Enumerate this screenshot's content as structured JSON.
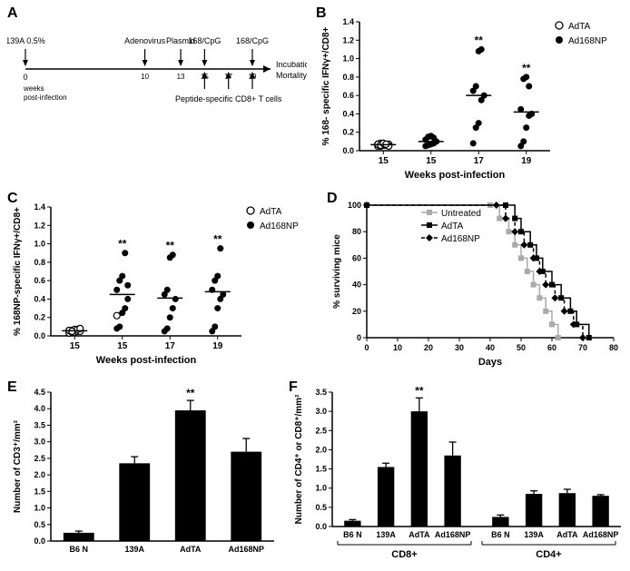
{
  "panelA": {
    "label": "A",
    "timeline": {
      "top_events": [
        {
          "label": "139A 0.5%",
          "week": 0
        },
        {
          "label": "Adenovirus",
          "week": 10
        },
        {
          "label": "Plasmid",
          "week": 13
        },
        {
          "label": "168/CpG",
          "week": 15
        },
        {
          "label": "168/CpG",
          "week": 19
        }
      ],
      "bottom_events": [
        {
          "label": "Peptide-specific CD8+ T cells",
          "weeks": [
            15,
            17,
            19
          ]
        }
      ],
      "start_label": "0",
      "start_sublabel_1": "weeks",
      "start_sublabel_2": "post-infection",
      "end_label_1": "Incubation",
      "end_label_2": "Mortality",
      "week_ticks": [
        0,
        10,
        13,
        15,
        17,
        19
      ]
    }
  },
  "panelB": {
    "label": "B",
    "ylabel": "% 168- specific IFNγ+/CD8+",
    "xlabel": "Weeks post-infection",
    "ylim": [
      0,
      1.4
    ],
    "yticks": [
      0,
      0.2,
      0.4,
      0.6,
      0.8,
      1.0,
      1.2,
      1.4
    ],
    "xticks": [
      "15",
      "15",
      "17",
      "19"
    ],
    "legend": [
      {
        "label": "AdTA",
        "marker": "open-circle"
      },
      {
        "label": "Ad168NP",
        "marker": "filled-circle"
      }
    ],
    "groups": [
      {
        "x": 0,
        "marker": "open-circle",
        "points": [
          0.05,
          0.05,
          0.06,
          0.06,
          0.07,
          0.07,
          0.08,
          0.08,
          0.06,
          0.05,
          0.07,
          0.06,
          0.08,
          0.07
        ],
        "mean": 0.065,
        "sig": ""
      },
      {
        "x": 1,
        "marker": "filled-circle",
        "points": [
          0.05,
          0.06,
          0.07,
          0.08,
          0.1,
          0.12,
          0.15,
          0.16,
          0.14
        ],
        "mean": 0.1,
        "sig": ""
      },
      {
        "x": 2,
        "marker": "filled-circle",
        "points": [
          0.08,
          0.25,
          0.3,
          0.55,
          0.6,
          0.65,
          0.7,
          1.08,
          1.1
        ],
        "mean": 0.6,
        "sig": "**"
      },
      {
        "x": 3,
        "marker": "filled-circle",
        "points": [
          0.05,
          0.1,
          0.25,
          0.38,
          0.4,
          0.45,
          0.78,
          0.8,
          0.7
        ],
        "mean": 0.42,
        "sig": "**"
      }
    ]
  },
  "panelC": {
    "label": "C",
    "ylabel": "% 168NP-specific IFNγ+/CD8+",
    "xlabel": "Weeks post-infection",
    "ylim": [
      0,
      1.4
    ],
    "yticks": [
      0,
      0.2,
      0.4,
      0.6,
      0.8,
      1.0,
      1.2,
      1.4
    ],
    "xticks": [
      "15",
      "15",
      "17",
      "19"
    ],
    "legend": [
      {
        "label": "AdTA",
        "marker": "open-circle"
      },
      {
        "label": "Ad168NP",
        "marker": "filled-circle"
      }
    ],
    "groups": [
      {
        "x": 0,
        "marker": "open-circle",
        "points": [
          0.03,
          0.04,
          0.04,
          0.05,
          0.05,
          0.06,
          0.06,
          0.07,
          0.07,
          0.08,
          0.06,
          0.05
        ],
        "mean": 0.055,
        "sig": ""
      },
      {
        "x": 1,
        "marker": "filled-circle",
        "points": [
          0.08,
          0.1,
          0.25,
          0.3,
          0.4,
          0.5,
          0.6,
          0.65,
          0.9,
          0.55
        ],
        "mean": 0.45,
        "sig": "**",
        "outlier_open": 0.22
      },
      {
        "x": 2,
        "marker": "filled-circle",
        "points": [
          0.05,
          0.08,
          0.2,
          0.3,
          0.4,
          0.45,
          0.5,
          0.85,
          0.88
        ],
        "mean": 0.41,
        "sig": "**"
      },
      {
        "x": 3,
        "marker": "filled-circle",
        "points": [
          0.05,
          0.1,
          0.3,
          0.4,
          0.45,
          0.5,
          0.6,
          0.65,
          0.95
        ],
        "mean": 0.48,
        "sig": "**"
      }
    ]
  },
  "panelD": {
    "label": "D",
    "ylabel": "% surviving mice",
    "xlabel": "Days",
    "ylim": [
      0,
      100
    ],
    "yticks": [
      0,
      20,
      40,
      60,
      80,
      100
    ],
    "xlim": [
      0,
      80
    ],
    "xticks": [
      0,
      10,
      20,
      30,
      40,
      50,
      60,
      70,
      80
    ],
    "legend": [
      {
        "label": "Untreated",
        "marker": "gray-square",
        "color": "#aaaaaa",
        "dash": "none"
      },
      {
        "label": "AdTA",
        "marker": "black-square",
        "color": "#000000",
        "dash": "none"
      },
      {
        "label": "Ad168NP",
        "marker": "black-diamond",
        "color": "#000000",
        "dash": "4,3"
      }
    ],
    "series": [
      {
        "name": "Untreated",
        "color": "#aaaaaa",
        "dash": "none",
        "marker": "square",
        "pts": [
          [
            0,
            100
          ],
          [
            40,
            100
          ],
          [
            43,
            90
          ],
          [
            46,
            80
          ],
          [
            48,
            70
          ],
          [
            50,
            60
          ],
          [
            52,
            50
          ],
          [
            54,
            40
          ],
          [
            56,
            30
          ],
          [
            58,
            20
          ],
          [
            60,
            10
          ],
          [
            62,
            0
          ]
        ]
      },
      {
        "name": "AdTA",
        "color": "#000000",
        "dash": "none",
        "marker": "square",
        "pts": [
          [
            0,
            100
          ],
          [
            45,
            100
          ],
          [
            48,
            90
          ],
          [
            50,
            80
          ],
          [
            53,
            70
          ],
          [
            55,
            60
          ],
          [
            57,
            50
          ],
          [
            60,
            40
          ],
          [
            63,
            30
          ],
          [
            66,
            20
          ],
          [
            68,
            10
          ],
          [
            72,
            0
          ]
        ]
      },
      {
        "name": "Ad168NP",
        "color": "#000000",
        "dash": "4,3",
        "marker": "diamond",
        "pts": [
          [
            0,
            100
          ],
          [
            42,
            100
          ],
          [
            45,
            90
          ],
          [
            48,
            80
          ],
          [
            51,
            70
          ],
          [
            54,
            60
          ],
          [
            56,
            50
          ],
          [
            58,
            40
          ],
          [
            61,
            30
          ],
          [
            64,
            20
          ],
          [
            67,
            10
          ],
          [
            70,
            0
          ]
        ]
      }
    ]
  },
  "panelE": {
    "label": "E",
    "ylabel": "Number of CD3⁺/mm²",
    "yticks": [
      0,
      0.5,
      1.0,
      1.5,
      2.0,
      2.5,
      3.0,
      3.5,
      4.0,
      4.5
    ],
    "ylim": [
      0,
      4.5
    ],
    "bars": [
      {
        "label": "B6 N",
        "value": 0.25,
        "err": 0.05,
        "sig": ""
      },
      {
        "label": "139A",
        "value": 2.35,
        "err": 0.2,
        "sig": ""
      },
      {
        "label": "AdTA",
        "value": 3.95,
        "err": 0.3,
        "sig": "**"
      },
      {
        "label": "Ad168NP",
        "value": 2.7,
        "err": 0.4,
        "sig": ""
      }
    ],
    "bar_color": "#000000",
    "bar_width": 0.55
  },
  "panelF": {
    "label": "F",
    "ylabel": "Number of CD4⁺ or CD8⁺/mm²",
    "yticks": [
      0,
      0.5,
      1.0,
      1.5,
      2.0,
      2.5,
      3.0,
      3.5
    ],
    "ylim": [
      0,
      3.5
    ],
    "groups": [
      "CD8+",
      "CD4+"
    ],
    "bars": [
      {
        "group": 0,
        "label": "B6 N",
        "value": 0.15,
        "err": 0.03,
        "sig": ""
      },
      {
        "group": 0,
        "label": "139A",
        "value": 1.55,
        "err": 0.1,
        "sig": ""
      },
      {
        "group": 0,
        "label": "AdTA",
        "value": 3.0,
        "err": 0.35,
        "sig": "**"
      },
      {
        "group": 0,
        "label": "Ad168NP",
        "value": 1.85,
        "err": 0.35,
        "sig": ""
      },
      {
        "group": 1,
        "label": "B6 N",
        "value": 0.25,
        "err": 0.05,
        "sig": ""
      },
      {
        "group": 1,
        "label": "139A",
        "value": 0.85,
        "err": 0.08,
        "sig": ""
      },
      {
        "group": 1,
        "label": "AdTA",
        "value": 0.87,
        "err": 0.1,
        "sig": ""
      },
      {
        "group": 1,
        "label": "Ad168NP",
        "value": 0.8,
        "err": 0.03,
        "sig": ""
      }
    ],
    "bar_color": "#000000",
    "bar_width": 0.5
  }
}
